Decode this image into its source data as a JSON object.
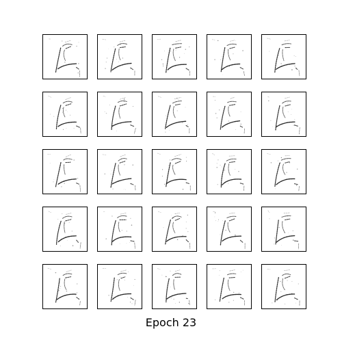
{
  "figure": {
    "caption": "Epoch 23",
    "grid": {
      "rows": 5,
      "cols": 5
    },
    "cell_icon": "generated-glyph-sample",
    "ink_color": "#111111",
    "panel_background": "#ffffff",
    "border_color": "#000000"
  }
}
